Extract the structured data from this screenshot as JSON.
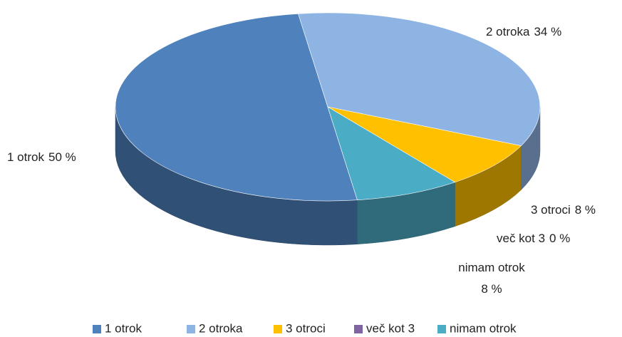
{
  "chart_data": {
    "type": "pie",
    "categories": [
      "1 otrok",
      "2 otroka",
      "3 otroci",
      "več kot 3",
      "nimam otrok"
    ],
    "values": [
      50,
      34,
      8,
      0,
      8
    ],
    "value_labels": [
      "50 %",
      "34 %",
      "8 %",
      "0 %",
      "8 %"
    ],
    "colors": [
      "#4f81bd",
      "#8eb4e3",
      "#ffc000",
      "#8064a2",
      "#4bacc6"
    ],
    "legend": "bottom"
  }
}
